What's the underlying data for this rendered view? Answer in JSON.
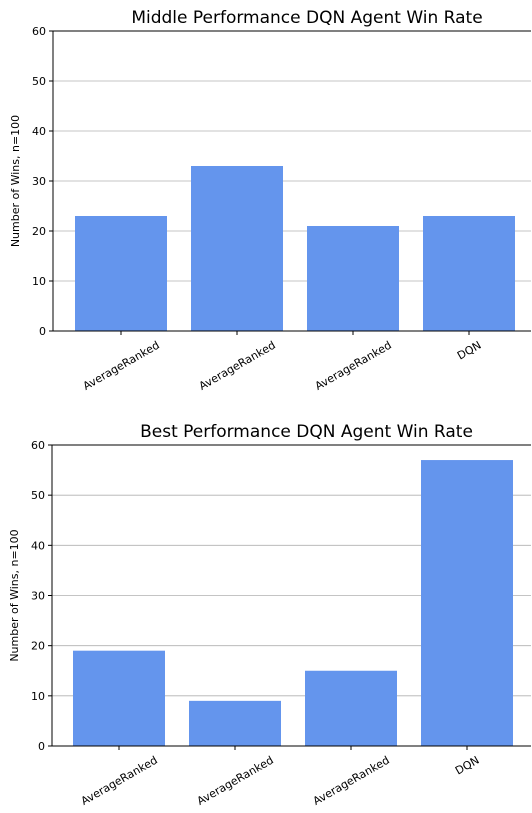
{
  "chart_data": [
    {
      "type": "bar",
      "title": "Middle Performance DQN Agent Win Rate",
      "y_label": "Number of Wins, n=100",
      "categories": [
        "AverageRanked",
        "AverageRanked",
        "AverageRanked",
        "DQN"
      ],
      "values": [
        23,
        33,
        21,
        23
      ],
      "color": "#6495ed",
      "ylim": [
        0,
        60
      ],
      "yticks": [
        0,
        10,
        20,
        30,
        40,
        50,
        60
      ],
      "grid": true
    },
    {
      "type": "bar",
      "title": "Best Performance DQN Agent Win Rate",
      "y_label": "Number of Wins, n=100",
      "categories": [
        "AverageRanked",
        "AverageRanked",
        "AverageRanked",
        "DQN"
      ],
      "values": [
        19,
        9,
        15,
        57
      ],
      "color": "#6495ed",
      "ylim": [
        0,
        60
      ],
      "yticks": [
        0,
        10,
        20,
        30,
        40,
        50,
        60
      ],
      "grid": true
    }
  ]
}
